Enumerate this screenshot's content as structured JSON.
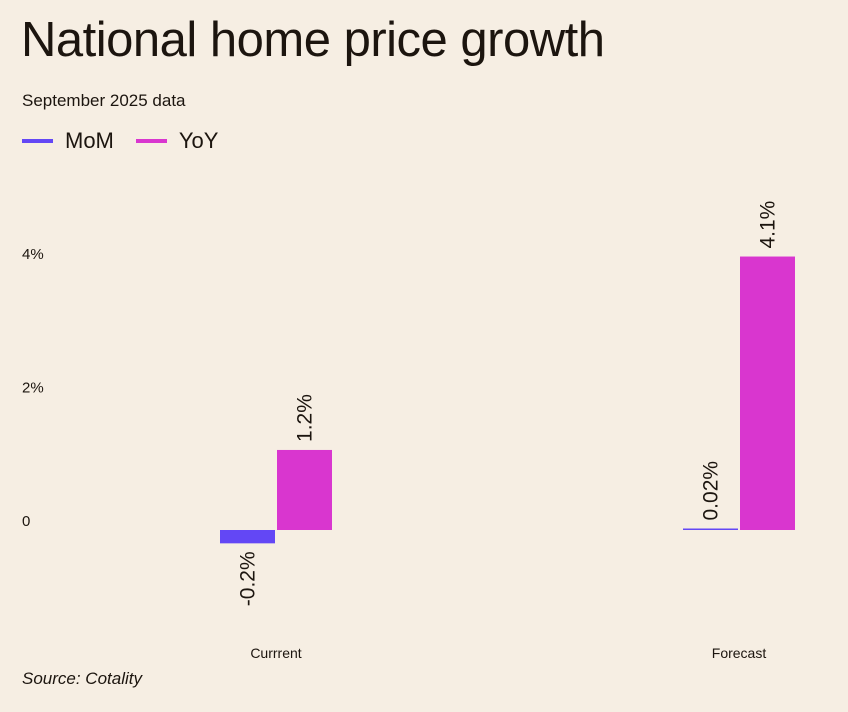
{
  "chart_data": {
    "type": "bar",
    "title": "National home price growth",
    "subtitle": "September 2025 data",
    "source": "Source: Cotality",
    "categories": [
      "Currrent",
      "Forecast"
    ],
    "series": [
      {
        "name": "MoM",
        "color": "#6347f5",
        "values": [
          -0.2,
          0.02
        ],
        "labels": [
          "-0.2%",
          "0.02%"
        ]
      },
      {
        "name": "YoY",
        "color": "#d936cf",
        "values": [
          1.2,
          4.1
        ],
        "labels": [
          "1.2%",
          "4.1%"
        ]
      }
    ],
    "yticks": [
      {
        "value": 0,
        "label": "0"
      },
      {
        "value": 2,
        "label": "2%"
      },
      {
        "value": 4,
        "label": "4%"
      }
    ],
    "ylim": [
      -1.5,
      5
    ],
    "grid": false,
    "legend": "top-left",
    "xlabel": "",
    "ylabel": ""
  }
}
